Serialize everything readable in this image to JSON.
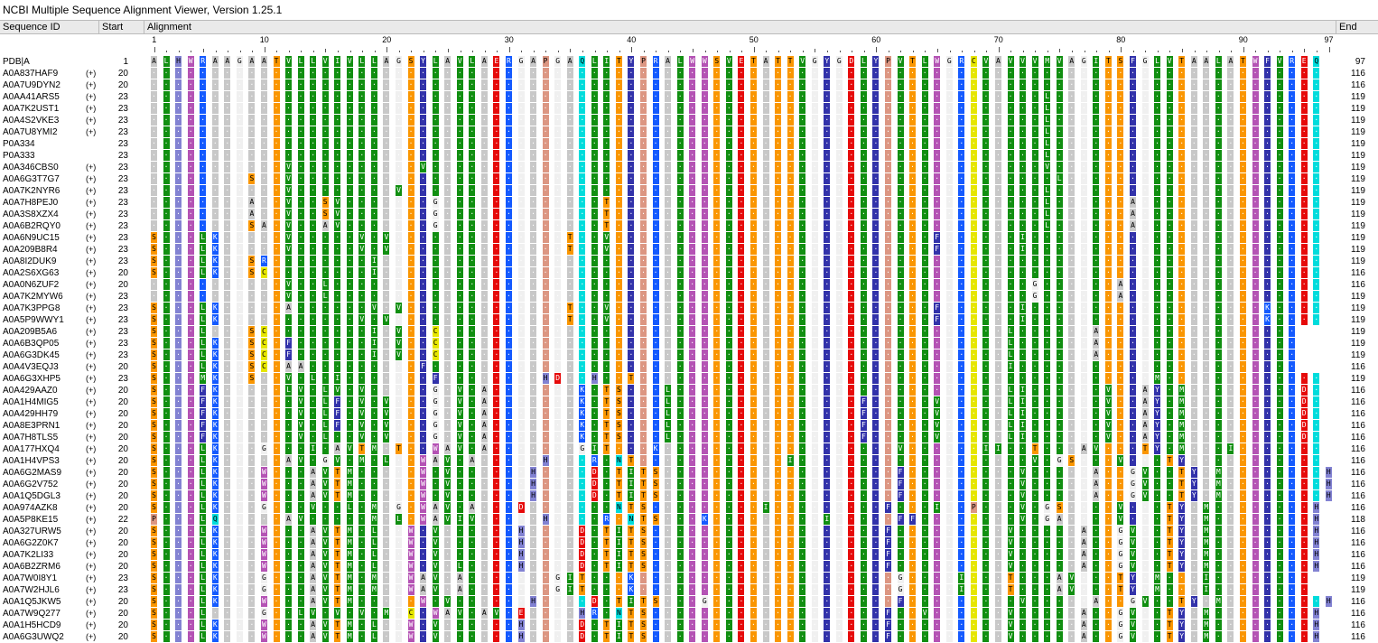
{
  "window": {
    "title": "NCBI Multiple Sequence Alignment Viewer, Version 1.25.1"
  },
  "columns": {
    "sequence_id": "Sequence ID",
    "start": "Start",
    "alignment": "Alignment",
    "end": "End"
  },
  "ruler": {
    "ticks": [
      "1",
      "10",
      "20",
      "30",
      "40",
      "50",
      "60",
      "70",
      "80",
      "90",
      "97"
    ],
    "positions": [
      1,
      10,
      20,
      30,
      40,
      50,
      60,
      70,
      80,
      90,
      97
    ]
  },
  "expand_label": "(+)",
  "reference_sequence": "ALHWRAAGAATVLLVIVLLAGSYLAVLAERGAPGAQLITYPRALWWSVETATTVGYGDLYPVTLWGRCVAVVVMVAGITSFGLVTAALATWFVREQ",
  "colors": {
    "A": "#c8c8c8",
    "G": "#f0f0f0",
    "L": "#118f11",
    "I": "#118f11",
    "V": "#118f11",
    "M": "#118f11",
    "F": "#3232aa",
    "W": "#b453b4",
    "Y": "#3232aa",
    "H": "#8282d2",
    "K": "#145aff",
    "R": "#145aff",
    "D": "#e60a0a",
    "E": "#e60a0a",
    "S": "#fa9600",
    "T": "#fa9600",
    "N": "#00dcdc",
    "Q": "#00dcdc",
    "C": "#e6e600",
    "P": "#dc9682"
  },
  "rows": [
    {
      "id": "PDB|A",
      "plus": "",
      "start": "1",
      "end": "97",
      "seq": "ALHWRAAGAATVLLVIVLLAGSYLAVLAERGAPGAQLITYPRALWWSVETATTVGYGDLYPVTLWGRCVAVVVMVAGITSFGLVTAALATWFVREQ"
    },
    {
      "id": "A0A837HAF9",
      "plus": "(+)",
      "start": "20",
      "end": "116",
      "seq": "................................................................................................."
    },
    {
      "id": "A0A7U9DYN2",
      "plus": "(+)",
      "start": "20",
      "end": "116",
      "seq": "................................................................................................."
    },
    {
      "id": "A0AA41ARS5",
      "plus": "(+)",
      "start": "23",
      "end": "119",
      "seq": ".........................................................................L......................."
    },
    {
      "id": "A0A7K2UST1",
      "plus": "(+)",
      "start": "23",
      "end": "119",
      "seq": ".........................................................................L......................."
    },
    {
      "id": "A0A4S2VKE3",
      "plus": "(+)",
      "start": "23",
      "end": "119",
      "seq": ".........................................................................L......................."
    },
    {
      "id": "A0A7U8YMI2",
      "plus": "(+)",
      "start": "23",
      "end": "119",
      "seq": ".........................................................................L......................."
    },
    {
      "id": "P0A334",
      "plus": "",
      "start": "23",
      "end": "119",
      "seq": ".........................................................................L......................."
    },
    {
      "id": "P0A333",
      "plus": "",
      "start": "23",
      "end": "119",
      "seq": ".........................................................................L......................."
    },
    {
      "id": "A0A346CBS0",
      "plus": "(+)",
      "start": "23",
      "end": "119",
      "seq": "...........V..........V..................................................V......................."
    },
    {
      "id": "A0A6G3T7G7",
      "plus": "(+)",
      "start": "23",
      "end": "119",
      "seq": "........S..V..............................................................L......................."
    },
    {
      "id": "A0A7K2NYR6",
      "plus": "(+)",
      "start": "23",
      "end": "119",
      "seq": "...........V........V....................................................L......................."
    },
    {
      "id": "A0A7H8PEJ0",
      "plus": "(+)",
      "start": "23",
      "end": "119",
      "seq": "........A..V..SV.......G.............T...................................L......A................"
    },
    {
      "id": "A0A3S8XZX4",
      "plus": "(+)",
      "start": "23",
      "end": "119",
      "seq": "........A..V..SV.......G.............T...................................L......A................"
    },
    {
      "id": "A0A6B2RQY0",
      "plus": "(+)",
      "start": "23",
      "end": "119",
      "seq": "........SA.V..AV.......G.............T...................................L......A................"
    },
    {
      "id": "A0A6N9UC15",
      "plus": "(+)",
      "start": "23",
      "end": "119",
      "seq": "S...LK.....V.....V.V..............T..V..........................F......I........................"
    },
    {
      "id": "A0A209B8R4",
      "plus": "(+)",
      "start": "23",
      "end": "119",
      "seq": "S...LK.....V.....V.V..............T..V..........................F......I........................"
    },
    {
      "id": "A0A8I2DUK9",
      "plus": "(+)",
      "start": "23",
      "end": "119",
      "seq": "S...LK..SR........I............................................................................."
    },
    {
      "id": "A0A2S6XG63",
      "plus": "(+)",
      "start": "20",
      "end": "116",
      "seq": "S...LK..SC........I............................................................................."
    },
    {
      "id": "A0A0N6ZUF2",
      "plus": "(+)",
      "start": "20",
      "end": "116",
      "seq": "...........V..L.........................................................G......A................"
    },
    {
      "id": "A0A7K2MYW6",
      "plus": "(+)",
      "start": "23",
      "end": "119",
      "seq": "...........V..L.........................................................G......A................"
    },
    {
      "id": "A0A7K3PPG8",
      "plus": "(+)",
      "start": "23",
      "end": "119",
      "seq": "S...LK.....A......V.V.............T..V..........................F......I...................K....."
    },
    {
      "id": "A0A5P9WWY1",
      "plus": "(+)",
      "start": "23",
      "end": "119",
      "seq": "S...LK...........V.V..............T..V..........................F......I...................K....."
    },
    {
      "id": "A0A209B5A6",
      "plus": "(+)",
      "start": "23",
      "end": "119",
      "seq": "S...L...SC........I.V..C..............................................L......A................"
    },
    {
      "id": "A0A6B3QP05",
      "plus": "(+)",
      "start": "23",
      "end": "119",
      "seq": "S...LK..SC.F......I.V..C..............................................L......A................"
    },
    {
      "id": "A0A6G3DK45",
      "plus": "(+)",
      "start": "23",
      "end": "119",
      "seq": "S...LK..SC.F......I.V..C..............................................L......A................"
    },
    {
      "id": "A0A4V3EQJ3",
      "plus": "(+)",
      "start": "20",
      "end": "116",
      "seq": "S...LK..SC.AA.........F...............................................I......................."
    },
    {
      "id": "A0A6G3XHP5",
      "plus": "(+)",
      "start": "23",
      "end": "119",
      "seq": "S...MK..S..V.L.I.......F........HD..H..T..........................................M............."
    },
    {
      "id": "A0A429AAZ0",
      "plus": "(+)",
      "start": "20",
      "end": "116",
      "seq": "S...FK.....LV.LV.V.....G.V.A.......K.TS...L...........................LI......V..AY.M.........D."
    },
    {
      "id": "A0A1H4MIG5",
      "plus": "(+)",
      "start": "20",
      "end": "116",
      "seq": "S...FK......V.LF.V.V...G.V.A.......K.TS...L...............F.....V.....LI......V..AY.M.........D."
    },
    {
      "id": "A0A429HH79",
      "plus": "(+)",
      "start": "20",
      "end": "116",
      "seq": "S...FK......V.LF.V.V...G.V.A.......K.TS...L...............F.....V.....LI......V..AY.M.........D."
    },
    {
      "id": "A0A8E3PRN1",
      "plus": "(+)",
      "start": "20",
      "end": "116",
      "seq": "S...FK......V.LF.V.V...G.V.A.......K.TS...L...............F.....V.....LI......V..AY.M.........D."
    },
    {
      "id": "A0A7H8TLS5",
      "plus": "(+)",
      "start": "20",
      "end": "116",
      "seq": "S...FK......V.L..V.V...G.V.A.......K.TS...L...............F.....V.....LI......V..AY.M.........D."
    },
    {
      "id": "A0A177HXQ4",
      "plus": "(+)",
      "start": "20",
      "end": "116",
      "seq": "S...LK...G...I.AVTM.T..WAV.A.......GIT...K...................V......II..T...AV...TY.M...I........"
    },
    {
      "id": "A0A1H4VPS3",
      "plus": "(+)",
      "start": "20",
      "end": "116",
      "seq": "S...LK.....AV.GV.M.L..WAV.A.....H...R.NT............I...................V.GS...V...TY............"
    },
    {
      "id": "A0A6G2MAS9",
      "plus": "(+)",
      "start": "20",
      "end": "116",
      "seq": "S...LK...W...AVTM.....W.V......H....D.TITS...................F.........V.....A..GV..TY.M........H."
    },
    {
      "id": "A0A6G2V752",
      "plus": "(+)",
      "start": "20",
      "end": "116",
      "seq": "S...LK...W...AVTM.....W.V......H....D.TITS...................F.........V.....A..GV..TY.M........H."
    },
    {
      "id": "A0A1Q5DGL3",
      "plus": "(+)",
      "start": "20",
      "end": "116",
      "seq": "S...LK...W...AVTM.....W.V......H....D.TITS...................F.........V.....A..GV..TY.M........H."
    },
    {
      "id": "A0A974AZK8",
      "plus": "(+)",
      "start": "20",
      "end": "116",
      "seq": "S...LK...G...V..L.M.G.WAV.A...D.......NTS.........I.........F...I..P...V.GS....V...TY.M........H.E"
    },
    {
      "id": "A0A5P8KE15",
      "plus": "(+)",
      "start": "22",
      "end": "118",
      "seq": "P...LQ.....AV.....M.L.WAVIV.....H....R.NTS...K.........I.....FF........V.GA....V...TY.M........H."
    },
    {
      "id": "A0A327URW5",
      "plus": "(+)",
      "start": "20",
      "end": "116",
      "seq": "S...LK...W...AVTM.L..W.V......H....D.TITS...................F.........V.....A..GV..TY.M........H."
    },
    {
      "id": "A0A6G2Z0K7",
      "plus": "(+)",
      "start": "20",
      "end": "116",
      "seq": "S...LK...W...AVTM.L..W.V......H....D.TITS...................F.........V.....A..GV..TY.M........H."
    },
    {
      "id": "A0A7K2LI33",
      "plus": "(+)",
      "start": "20",
      "end": "116",
      "seq": "S...LK...W...AVTM.L..W.V......H....D.TITS...................F.........V.....A..GV..TY.M........H."
    },
    {
      "id": "A0A6B2ZRM6",
      "plus": "(+)",
      "start": "20",
      "end": "116",
      "seq": "S...LK...W...AVTM.L..W.V.L....H....D.TITS...................F.........V.....A..GV..TY.M........H."
    },
    {
      "id": "A0A7W0I8Y1",
      "plus": "(+)",
      "start": "23",
      "end": "119",
      "seq": "S...LK...G...AVTM.M..WAV.A.......GIT...K.....................G....I...T...AV...TY.M...I........"
    },
    {
      "id": "A0A7W2HJL6",
      "plus": "(+)",
      "start": "23",
      "end": "119",
      "seq": "S...LK...G...AVTM.M..WAV.A.......GIT...K.....................G....I...T...AV...TY.M...I........"
    },
    {
      "id": "A0A1Q5JKW5",
      "plus": "(+)",
      "start": "20",
      "end": "116",
      "seq": "S...LK...W...AVTM.....W.V......H....D.TITS...G...............F.........V.....A..GV..TY.M........H."
    },
    {
      "id": "A0A7W9Q277",
      "plus": "(+)",
      "start": "20",
      "end": "116",
      "seq": "S...L....G..LV.V.V.M.C.WAV.AV.E....HR.NTS...................F..V......V.....A..GV..TY.M........H."
    },
    {
      "id": "A0A1H5HCD9",
      "plus": "(+)",
      "start": "20",
      "end": "116",
      "seq": "S...LK...W...AVTM.L..W.V......H....D.TITS...................F.........V.....A..GV..TY.M........H."
    },
    {
      "id": "A0A6G3UWQ2",
      "plus": "(+)",
      "start": "20",
      "end": "116",
      "seq": "S...LK...W...AVTM.L..W.V......H....D.TITS...................F.........V.....A..GV..TY.M........H."
    }
  ]
}
